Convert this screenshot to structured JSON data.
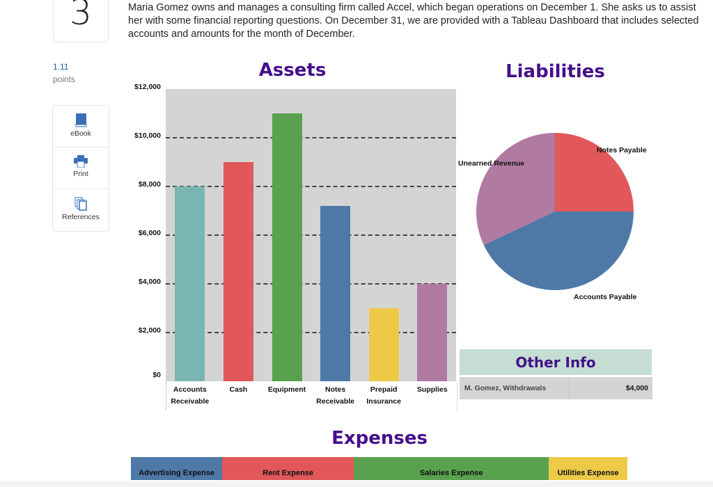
{
  "question": {
    "number": "3",
    "prompt": "Maria Gomez owns and manages a consulting firm called Accel, which began operations on December 1. She asks us to assist her with some financial reporting questions. On December 31, we are provided with a Tableau Dashboard that includes selected accounts and amounts for the month of December.",
    "points_value": "1.11",
    "points_label": "points"
  },
  "tools": [
    {
      "label": "eBook",
      "icon": "book-icon"
    },
    {
      "label": "Print",
      "icon": "printer-icon"
    },
    {
      "label": "References",
      "icon": "documents-icon"
    }
  ],
  "colors": {
    "title": "#45108a",
    "teal": "#7ab6b1",
    "red": "#e1575a",
    "green": "#59a14f",
    "blue": "#4e79a7",
    "yellow": "#edc948",
    "purple": "#b07aa1"
  },
  "chart_data": [
    {
      "type": "bar",
      "title": "Assets",
      "categories": [
        [
          "Accounts",
          "Receivable"
        ],
        [
          "Cash",
          ""
        ],
        [
          "Equipment",
          ""
        ],
        [
          "Notes",
          "Receivable"
        ],
        [
          "Prepaid",
          "Insurance"
        ],
        [
          "Supplies",
          ""
        ]
      ],
      "values": [
        8000,
        9000,
        11000,
        7200,
        3000,
        4000
      ],
      "bar_colors": [
        "#7ab6b1",
        "#e1575a",
        "#59a14f",
        "#4e79a7",
        "#edc948",
        "#b07aa1"
      ],
      "ylim": [
        0,
        12000
      ],
      "yticks": [
        "$0",
        "$2,000",
        "$4,000",
        "$6,000",
        "$8,000",
        "$10,000",
        "$12,000"
      ],
      "ytick_values": [
        0,
        2000,
        4000,
        6000,
        8000,
        10000,
        12000
      ],
      "grid": "dashed horizontal"
    },
    {
      "type": "pie",
      "title": "Liabilities",
      "slices": [
        {
          "label": "Notes Payable",
          "share": 0.25,
          "color": "#e1575a"
        },
        {
          "label": "Accounts Payable",
          "share": 0.43,
          "color": "#4e79a7"
        },
        {
          "label": "Unearned Revenue",
          "share": 0.32,
          "color": "#b07aa1"
        }
      ]
    },
    {
      "type": "table",
      "title": "Other Info",
      "rows": [
        {
          "label": "M. Gomez, Withdrawals",
          "value": "$4,000"
        }
      ]
    },
    {
      "type": "bar",
      "orientation": "horizontal stacked",
      "title": "Expenses",
      "categories": [
        "Advertising Expense",
        "Rent Expense",
        "Salaries Expense",
        "Utilities Expense"
      ],
      "shares": [
        0.184,
        0.265,
        0.393,
        0.158
      ],
      "bar_colors": [
        "#4e79a7",
        "#e1575a",
        "#59a14f",
        "#edc948"
      ]
    }
  ]
}
